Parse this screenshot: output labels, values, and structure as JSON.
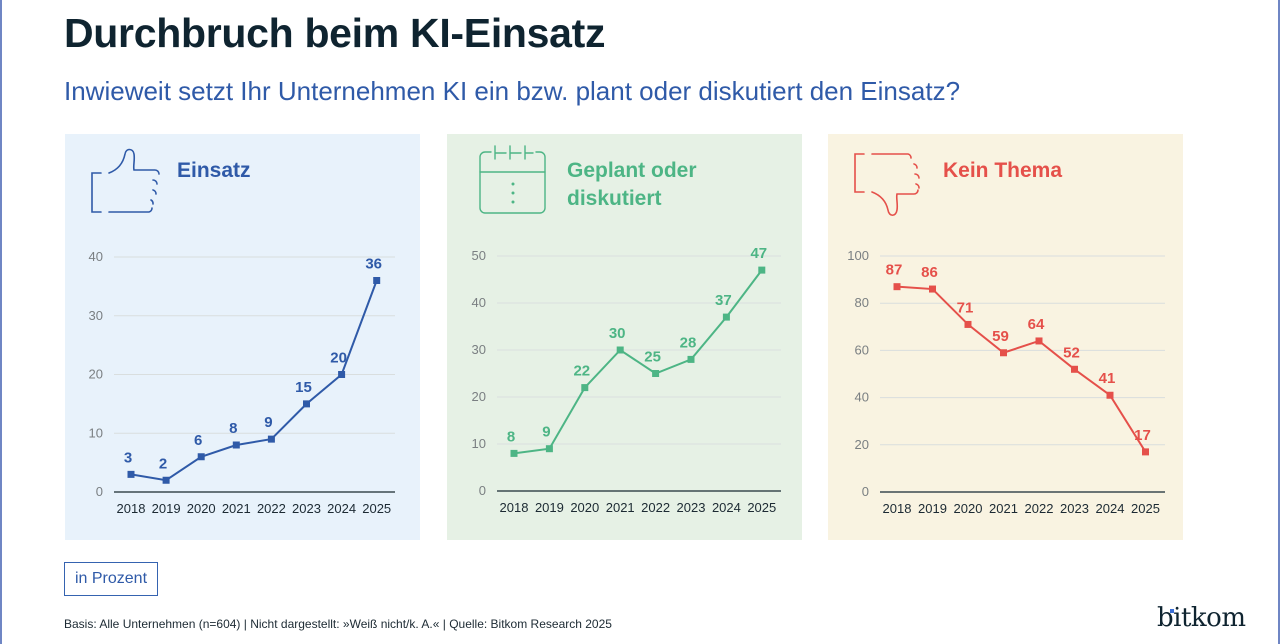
{
  "header": {
    "title": "Durchbruch beim KI-Einsatz",
    "subtitle": "Inwieweit setzt Ihr Unternehmen KI ein bzw. plant oder diskutiert den Einsatz?"
  },
  "unit_label": "in Prozent",
  "footnote": "Basis: Alle Unternehmen (n=604) | Nicht dargestellt: »Weiß nicht/k. A.« | Quelle: Bitkom Research 2025",
  "logo": "bitkom",
  "colors": {
    "blue": "#2f5aa8",
    "green": "#4db585",
    "red": "#e5504a",
    "panel_blue": "#e8f2fb",
    "panel_green": "#e6f1e5",
    "panel_yellow": "#f9f3e1"
  },
  "panels": [
    {
      "title_lines": [
        "Einsatz",
        ""
      ],
      "icon": "thumbs-up-icon"
    },
    {
      "title_lines": [
        "Geplant oder",
        "diskutiert"
      ],
      "icon": "calendar-icon"
    },
    {
      "title_lines": [
        "Kein Thema",
        ""
      ],
      "icon": "thumbs-down-icon"
    }
  ],
  "chart_data": [
    {
      "type": "line",
      "title": "Einsatz",
      "categories": [
        "2018",
        "2019",
        "2020",
        "2021",
        "2022",
        "2023",
        "2024",
        "2025"
      ],
      "values": [
        3,
        2,
        6,
        8,
        9,
        15,
        20,
        36
      ],
      "ylim": [
        0,
        40
      ],
      "yticks": [
        0,
        10,
        20,
        30,
        40
      ],
      "xlabel": "",
      "ylabel": "",
      "grid": true,
      "color": "#2f5aa8"
    },
    {
      "type": "line",
      "title": "Geplant oder diskutiert",
      "categories": [
        "2018",
        "2019",
        "2020",
        "2021",
        "2022",
        "2023",
        "2024",
        "2025"
      ],
      "values": [
        8,
        9,
        22,
        30,
        25,
        28,
        37,
        47
      ],
      "ylim": [
        0,
        50
      ],
      "yticks": [
        0,
        10,
        20,
        30,
        40,
        50
      ],
      "xlabel": "",
      "ylabel": "",
      "grid": true,
      "color": "#4db585"
    },
    {
      "type": "line",
      "title": "Kein Thema",
      "categories": [
        "2018",
        "2019",
        "2020",
        "2021",
        "2022",
        "2023",
        "2024",
        "2025"
      ],
      "values": [
        87,
        86,
        71,
        59,
        64,
        52,
        41,
        17
      ],
      "ylim": [
        0,
        100
      ],
      "yticks": [
        0,
        20,
        40,
        60,
        80,
        100
      ],
      "xlabel": "",
      "ylabel": "",
      "grid": true,
      "color": "#e5504a"
    }
  ]
}
